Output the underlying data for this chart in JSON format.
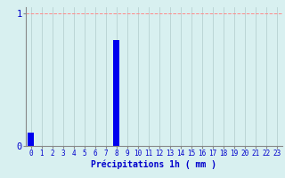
{
  "hours": [
    0,
    1,
    2,
    3,
    4,
    5,
    6,
    7,
    8,
    9,
    10,
    11,
    12,
    13,
    14,
    15,
    16,
    17,
    18,
    19,
    20,
    21,
    22,
    23
  ],
  "values": [
    0.1,
    0.0,
    0.0,
    0.0,
    0.0,
    0.0,
    0.0,
    0.0,
    0.8,
    0.0,
    0.0,
    0.0,
    0.0,
    0.0,
    0.0,
    0.0,
    0.0,
    0.0,
    0.0,
    0.0,
    0.0,
    0.0,
    0.0,
    0.0
  ],
  "bar_color": "#0000ee",
  "background_color": "#d8f0f0",
  "xlabel": "Précipitations 1h ( mm )",
  "xlabel_color": "#0000cc",
  "xlabel_fontsize": 7,
  "ytick_labels": [
    "0",
    "1"
  ],
  "ytick_values": [
    0,
    1
  ],
  "ylim_max": 1.05,
  "xlim": [
    -0.5,
    23.5
  ],
  "grid_color_h": "#ff8888",
  "grid_color_v": "#b0cccc",
  "tick_color": "#0000cc",
  "tick_fontsize": 5.5,
  "spine_color": "#888888",
  "bar_width": 0.6
}
